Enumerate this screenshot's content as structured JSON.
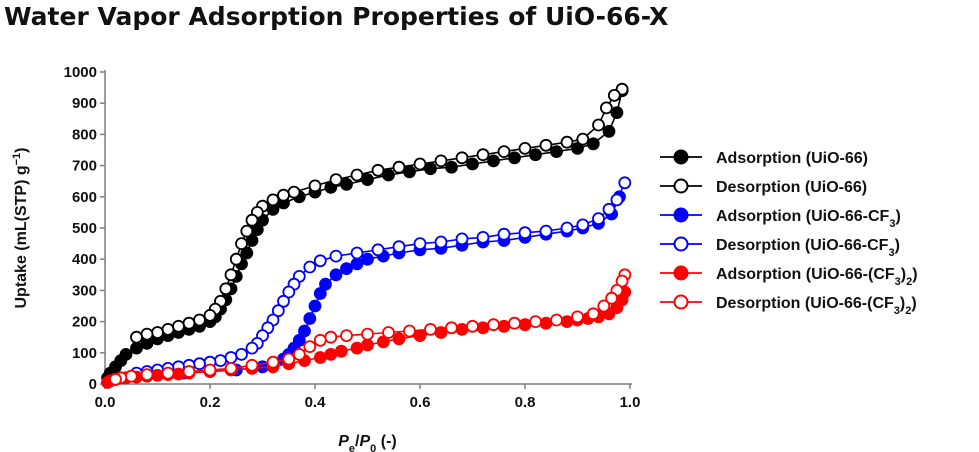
{
  "chart_data": {
    "type": "scatter",
    "title": "Water Vapor Adsorption Properties of UiO-66-X",
    "xlabel_parts": [
      "P",
      "e",
      "/",
      "P",
      "0",
      " (-)"
    ],
    "ylabel_parts": [
      "Uptake (mL(STP) g",
      "−1",
      ")"
    ],
    "xlim": [
      0,
      1
    ],
    "ylim": [
      0,
      1000
    ],
    "x_ticks": [
      "0.0",
      "0.2",
      "0.4",
      "0.6",
      "0.8",
      "1.0"
    ],
    "x_tick_values": [
      0,
      0.2,
      0.4,
      0.6,
      0.8,
      1.0
    ],
    "y_ticks": [
      "0",
      "100",
      "200",
      "300",
      "400",
      "500",
      "600",
      "700",
      "800",
      "900",
      "1000"
    ],
    "y_tick_values": [
      0,
      100,
      200,
      300,
      400,
      500,
      600,
      700,
      800,
      900,
      1000
    ],
    "legend_position": "right",
    "series": [
      {
        "legend_parts": [
          "Adsorption  (UiO-66)"
        ],
        "color": "#000000",
        "filled": true,
        "points": [
          [
            0.005,
            20
          ],
          [
            0.01,
            35
          ],
          [
            0.02,
            55
          ],
          [
            0.03,
            75
          ],
          [
            0.04,
            95
          ],
          [
            0.06,
            115
          ],
          [
            0.08,
            130
          ],
          [
            0.1,
            145
          ],
          [
            0.12,
            155
          ],
          [
            0.14,
            165
          ],
          [
            0.16,
            175
          ],
          [
            0.18,
            185
          ],
          [
            0.2,
            200
          ],
          [
            0.21,
            215
          ],
          [
            0.22,
            240
          ],
          [
            0.23,
            270
          ],
          [
            0.24,
            305
          ],
          [
            0.25,
            345
          ],
          [
            0.26,
            385
          ],
          [
            0.27,
            420
          ],
          [
            0.28,
            460
          ],
          [
            0.29,
            495
          ],
          [
            0.3,
            525
          ],
          [
            0.32,
            560
          ],
          [
            0.34,
            580
          ],
          [
            0.37,
            600
          ],
          [
            0.4,
            615
          ],
          [
            0.43,
            630
          ],
          [
            0.46,
            640
          ],
          [
            0.5,
            655
          ],
          [
            0.54,
            670
          ],
          [
            0.58,
            680
          ],
          [
            0.62,
            690
          ],
          [
            0.66,
            695
          ],
          [
            0.7,
            705
          ],
          [
            0.74,
            715
          ],
          [
            0.78,
            725
          ],
          [
            0.82,
            735
          ],
          [
            0.86,
            745
          ],
          [
            0.9,
            755
          ],
          [
            0.93,
            770
          ],
          [
            0.96,
            810
          ],
          [
            0.975,
            870
          ],
          [
            0.985,
            940
          ]
        ]
      },
      {
        "legend_parts": [
          "Desorption  (UiO-66)"
        ],
        "color": "#000000",
        "filled": false,
        "points": [
          [
            0.985,
            945
          ],
          [
            0.97,
            925
          ],
          [
            0.955,
            885
          ],
          [
            0.94,
            830
          ],
          [
            0.91,
            785
          ],
          [
            0.88,
            775
          ],
          [
            0.84,
            765
          ],
          [
            0.8,
            755
          ],
          [
            0.76,
            745
          ],
          [
            0.72,
            735
          ],
          [
            0.68,
            725
          ],
          [
            0.64,
            715
          ],
          [
            0.6,
            705
          ],
          [
            0.56,
            695
          ],
          [
            0.52,
            685
          ],
          [
            0.48,
            670
          ],
          [
            0.44,
            655
          ],
          [
            0.4,
            635
          ],
          [
            0.36,
            615
          ],
          [
            0.34,
            605
          ],
          [
            0.32,
            590
          ],
          [
            0.3,
            570
          ],
          [
            0.29,
            550
          ],
          [
            0.28,
            525
          ],
          [
            0.27,
            490
          ],
          [
            0.26,
            450
          ],
          [
            0.25,
            400
          ],
          [
            0.24,
            350
          ],
          [
            0.23,
            305
          ],
          [
            0.22,
            265
          ],
          [
            0.21,
            240
          ],
          [
            0.2,
            220
          ],
          [
            0.18,
            205
          ],
          [
            0.16,
            195
          ],
          [
            0.14,
            185
          ],
          [
            0.12,
            175
          ],
          [
            0.1,
            165
          ],
          [
            0.08,
            160
          ],
          [
            0.06,
            150
          ]
        ]
      },
      {
        "legend_parts": [
          "Adsorption  (UiO-66-CF",
          "3",
          ")"
        ],
        "color": "#0000ff",
        "filled": true,
        "points": [
          [
            0.005,
            5
          ],
          [
            0.01,
            10
          ],
          [
            0.02,
            15
          ],
          [
            0.04,
            20
          ],
          [
            0.06,
            25
          ],
          [
            0.1,
            30
          ],
          [
            0.15,
            35
          ],
          [
            0.2,
            40
          ],
          [
            0.25,
            45
          ],
          [
            0.3,
            55
          ],
          [
            0.32,
            65
          ],
          [
            0.34,
            80
          ],
          [
            0.35,
            95
          ],
          [
            0.36,
            115
          ],
          [
            0.37,
            140
          ],
          [
            0.38,
            170
          ],
          [
            0.39,
            210
          ],
          [
            0.4,
            250
          ],
          [
            0.41,
            290
          ],
          [
            0.42,
            320
          ],
          [
            0.44,
            350
          ],
          [
            0.46,
            370
          ],
          [
            0.48,
            385
          ],
          [
            0.5,
            400
          ],
          [
            0.53,
            410
          ],
          [
            0.56,
            420
          ],
          [
            0.6,
            430
          ],
          [
            0.64,
            435
          ],
          [
            0.68,
            445
          ],
          [
            0.72,
            455
          ],
          [
            0.76,
            460
          ],
          [
            0.8,
            470
          ],
          [
            0.84,
            480
          ],
          [
            0.88,
            490
          ],
          [
            0.91,
            500
          ],
          [
            0.94,
            515
          ],
          [
            0.965,
            545
          ],
          [
            0.98,
            600
          ]
        ]
      },
      {
        "legend_parts": [
          "Desorption  (UiO-66-CF",
          "3",
          ")"
        ],
        "color": "#0000ff",
        "filled": false,
        "points": [
          [
            0.99,
            645
          ],
          [
            0.975,
            590
          ],
          [
            0.96,
            560
          ],
          [
            0.94,
            530
          ],
          [
            0.91,
            510
          ],
          [
            0.88,
            500
          ],
          [
            0.84,
            490
          ],
          [
            0.8,
            485
          ],
          [
            0.76,
            480
          ],
          [
            0.72,
            470
          ],
          [
            0.68,
            465
          ],
          [
            0.64,
            455
          ],
          [
            0.6,
            450
          ],
          [
            0.56,
            440
          ],
          [
            0.52,
            430
          ],
          [
            0.48,
            420
          ],
          [
            0.44,
            410
          ],
          [
            0.41,
            395
          ],
          [
            0.39,
            375
          ],
          [
            0.37,
            345
          ],
          [
            0.36,
            320
          ],
          [
            0.35,
            295
          ],
          [
            0.34,
            265
          ],
          [
            0.33,
            235
          ],
          [
            0.32,
            205
          ],
          [
            0.31,
            180
          ],
          [
            0.3,
            155
          ],
          [
            0.29,
            130
          ],
          [
            0.28,
            115
          ],
          [
            0.26,
            95
          ],
          [
            0.24,
            85
          ],
          [
            0.22,
            75
          ],
          [
            0.2,
            70
          ],
          [
            0.18,
            65
          ],
          [
            0.16,
            60
          ],
          [
            0.14,
            55
          ],
          [
            0.12,
            50
          ],
          [
            0.1,
            45
          ],
          [
            0.08,
            40
          ],
          [
            0.06,
            35
          ]
        ]
      },
      {
        "legend_parts": [
          "Adsorption  (UiO-66-(CF",
          "3",
          ")",
          "2",
          ")"
        ],
        "color": "#ff0000",
        "filled": true,
        "points": [
          [
            0.005,
            5
          ],
          [
            0.01,
            10
          ],
          [
            0.02,
            15
          ],
          [
            0.04,
            20
          ],
          [
            0.06,
            22
          ],
          [
            0.08,
            25
          ],
          [
            0.1,
            28
          ],
          [
            0.12,
            30
          ],
          [
            0.14,
            32
          ],
          [
            0.16,
            35
          ],
          [
            0.2,
            40
          ],
          [
            0.24,
            45
          ],
          [
            0.28,
            50
          ],
          [
            0.32,
            55
          ],
          [
            0.35,
            65
          ],
          [
            0.38,
            75
          ],
          [
            0.41,
            85
          ],
          [
            0.43,
            95
          ],
          [
            0.45,
            105
          ],
          [
            0.48,
            115
          ],
          [
            0.5,
            125
          ],
          [
            0.53,
            135
          ],
          [
            0.56,
            145
          ],
          [
            0.6,
            155
          ],
          [
            0.64,
            165
          ],
          [
            0.68,
            175
          ],
          [
            0.72,
            180
          ],
          [
            0.76,
            185
          ],
          [
            0.8,
            190
          ],
          [
            0.84,
            195
          ],
          [
            0.88,
            200
          ],
          [
            0.9,
            205
          ],
          [
            0.92,
            210
          ],
          [
            0.94,
            215
          ],
          [
            0.96,
            225
          ],
          [
            0.975,
            245
          ],
          [
            0.985,
            270
          ],
          [
            0.99,
            295
          ]
        ]
      },
      {
        "legend_parts": [
          "Desorption  (UiO-66-(CF",
          "3",
          ")",
          "2",
          ")"
        ],
        "color": "#ff0000",
        "filled": false,
        "points": [
          [
            0.99,
            350
          ],
          [
            0.985,
            330
          ],
          [
            0.975,
            300
          ],
          [
            0.965,
            275
          ],
          [
            0.95,
            250
          ],
          [
            0.93,
            225
          ],
          [
            0.9,
            215
          ],
          [
            0.86,
            205
          ],
          [
            0.82,
            200
          ],
          [
            0.78,
            195
          ],
          [
            0.74,
            190
          ],
          [
            0.7,
            185
          ],
          [
            0.66,
            180
          ],
          [
            0.62,
            175
          ],
          [
            0.58,
            170
          ],
          [
            0.54,
            165
          ],
          [
            0.5,
            160
          ],
          [
            0.46,
            155
          ],
          [
            0.43,
            150
          ],
          [
            0.41,
            140
          ],
          [
            0.39,
            120
          ],
          [
            0.37,
            95
          ],
          [
            0.35,
            80
          ],
          [
            0.32,
            70
          ],
          [
            0.28,
            60
          ],
          [
            0.24,
            50
          ],
          [
            0.2,
            45
          ],
          [
            0.16,
            40
          ],
          [
            0.12,
            35
          ],
          [
            0.08,
            30
          ],
          [
            0.05,
            25
          ],
          [
            0.03,
            20
          ],
          [
            0.02,
            15
          ]
        ]
      }
    ]
  }
}
